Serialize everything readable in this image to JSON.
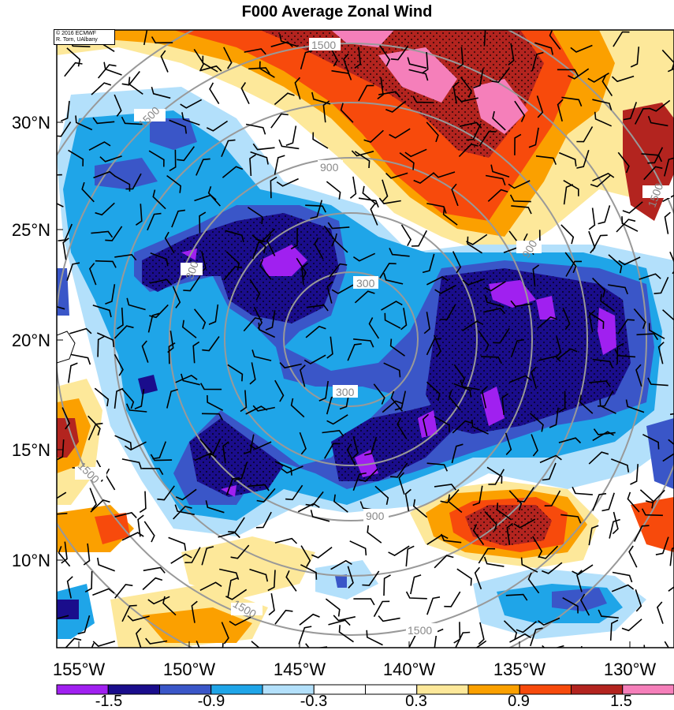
{
  "title": "F000 Average Zonal Wind",
  "credit": {
    "line1": "© 2016 ECMWF",
    "line2": "R. Torn, UAlbany"
  },
  "map": {
    "lon_range": [
      -156,
      -128
    ],
    "lat_range": [
      6,
      34
    ],
    "lat_ticks": [
      "30°N",
      "25°N",
      "20°N",
      "15°N",
      "10°N"
    ],
    "lon_ticks": [
      "155°W",
      "150°W",
      "145°W",
      "140°W",
      "135°W",
      "130°W"
    ],
    "range_ring_labels": [
      "300",
      "300",
      "300",
      "900",
      "900",
      "900",
      "1500",
      "1500",
      "1500",
      "1500",
      "1500",
      "1500"
    ],
    "colorbar": {
      "colors": [
        "#a020f0",
        "#1a0d8c",
        "#3a56c8",
        "#1fa5e8",
        "#b3e0fb",
        "#ffffff",
        "#ffffff",
        "#fde89a",
        "#fba000",
        "#f74a0c",
        "#b3241f",
        "#f57fba"
      ],
      "labels": [
        "-1.5",
        "-0.9",
        "-0.3",
        "0.3",
        "0.9",
        "1.5"
      ]
    }
  }
}
